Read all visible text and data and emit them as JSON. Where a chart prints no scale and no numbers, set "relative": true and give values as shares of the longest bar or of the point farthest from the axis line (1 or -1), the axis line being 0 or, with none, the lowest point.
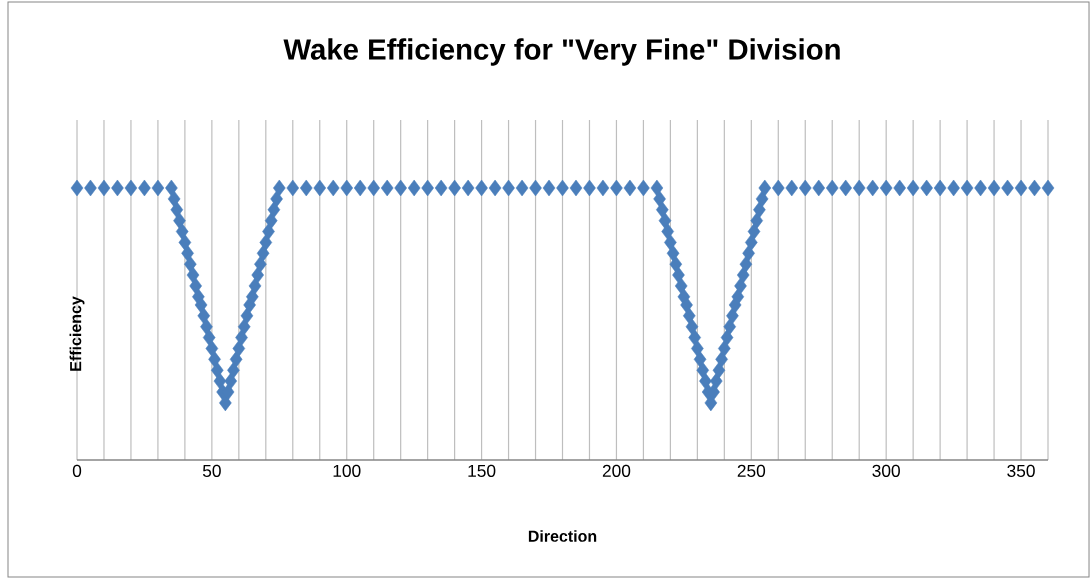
{
  "chart_data": {
    "type": "scatter",
    "title": "Wake Efficiency for \"Very Fine\" Division",
    "xlabel": "Direction",
    "ylabel": "Efficiency",
    "relative": true,
    "marker": "diamond",
    "grid": "x",
    "xlim": [
      0,
      360
    ],
    "xticks": [
      0,
      {
        "value": 10,
        "label": null
      },
      {
        "value": 20,
        "label": null
      },
      {
        "value": 30,
        "label": null
      },
      {
        "value": 40,
        "label": null
      },
      50,
      {
        "value": 60,
        "label": null
      },
      {
        "value": 70,
        "label": null
      },
      {
        "value": 80,
        "label": null
      },
      {
        "value": 90,
        "label": null
      },
      100,
      {
        "value": 110,
        "label": null
      },
      {
        "value": 120,
        "label": null
      },
      {
        "value": 130,
        "label": null
      },
      {
        "value": 140,
        "label": null
      },
      150,
      {
        "value": 160,
        "label": null
      },
      {
        "value": 170,
        "label": null
      },
      {
        "value": 180,
        "label": null
      },
      {
        "value": 190,
        "label": null
      },
      200,
      {
        "value": 210,
        "label": null
      },
      {
        "value": 220,
        "label": null
      },
      {
        "value": 230,
        "label": null
      },
      {
        "value": 240,
        "label": null
      },
      250,
      {
        "value": 260,
        "label": null
      },
      {
        "value": 270,
        "label": null
      },
      {
        "value": 280,
        "label": null
      },
      {
        "value": 290,
        "label": null
      },
      300,
      {
        "value": 310,
        "label": null
      },
      {
        "value": 320,
        "label": null
      },
      {
        "value": 330,
        "label": null
      },
      {
        "value": 340,
        "label": null
      },
      350,
      {
        "value": 360,
        "label": null
      }
    ],
    "series": [
      {
        "color": "#4a7ebb",
        "x": [
          0,
          5,
          10,
          15,
          20,
          25,
          30,
          35,
          36,
          37,
          38,
          39,
          40,
          41,
          42,
          43,
          44,
          45,
          46,
          47,
          48,
          49,
          50,
          51,
          52,
          53,
          54,
          55,
          56,
          57,
          58,
          59,
          60,
          61,
          62,
          63,
          64,
          65,
          66,
          67,
          68,
          69,
          70,
          71,
          72,
          73,
          74,
          75,
          80,
          85,
          90,
          95,
          100,
          105,
          110,
          115,
          120,
          125,
          130,
          135,
          140,
          145,
          150,
          155,
          160,
          165,
          170,
          175,
          180,
          185,
          190,
          195,
          200,
          205,
          210,
          215,
          216,
          217,
          218,
          219,
          220,
          221,
          222,
          223,
          224,
          225,
          226,
          227,
          228,
          229,
          230,
          231,
          232,
          233,
          234,
          235,
          236,
          237,
          238,
          239,
          240,
          241,
          242,
          243,
          244,
          245,
          246,
          247,
          248,
          249,
          250,
          251,
          252,
          253,
          254,
          255,
          260,
          265,
          270,
          275,
          280,
          285,
          290,
          295,
          300,
          305,
          310,
          315,
          320,
          325,
          330,
          335,
          340,
          345,
          350,
          355,
          360
        ],
        "values": [
          1,
          1,
          1,
          1,
          1,
          1,
          1,
          1,
          0.96,
          0.92,
          0.88,
          0.84,
          0.8,
          0.76,
          0.72,
          0.68,
          0.64,
          0.6,
          0.57,
          0.53,
          0.49,
          0.45,
          0.41,
          0.37,
          0.33,
          0.29,
          0.25,
          0.21,
          0.25,
          0.29,
          0.33,
          0.37,
          0.41,
          0.45,
          0.49,
          0.53,
          0.57,
          0.6,
          0.64,
          0.68,
          0.72,
          0.76,
          0.8,
          0.84,
          0.88,
          0.92,
          0.96,
          1,
          1,
          1,
          1,
          1,
          1,
          1,
          1,
          1,
          1,
          1,
          1,
          1,
          1,
          1,
          1,
          1,
          1,
          1,
          1,
          1,
          1,
          1,
          1,
          1,
          1,
          1,
          1,
          1,
          0.96,
          0.92,
          0.88,
          0.84,
          0.8,
          0.76,
          0.72,
          0.68,
          0.64,
          0.6,
          0.57,
          0.53,
          0.49,
          0.45,
          0.41,
          0.37,
          0.33,
          0.29,
          0.25,
          0.21,
          0.25,
          0.29,
          0.33,
          0.37,
          0.41,
          0.45,
          0.49,
          0.53,
          0.57,
          0.6,
          0.64,
          0.68,
          0.72,
          0.76,
          0.8,
          0.84,
          0.88,
          0.92,
          0.96,
          1,
          1,
          1,
          1,
          1,
          1,
          1,
          1,
          1,
          1,
          1,
          1,
          1,
          1,
          1,
          1,
          1,
          1,
          1,
          1,
          1,
          1
        ]
      }
    ]
  }
}
